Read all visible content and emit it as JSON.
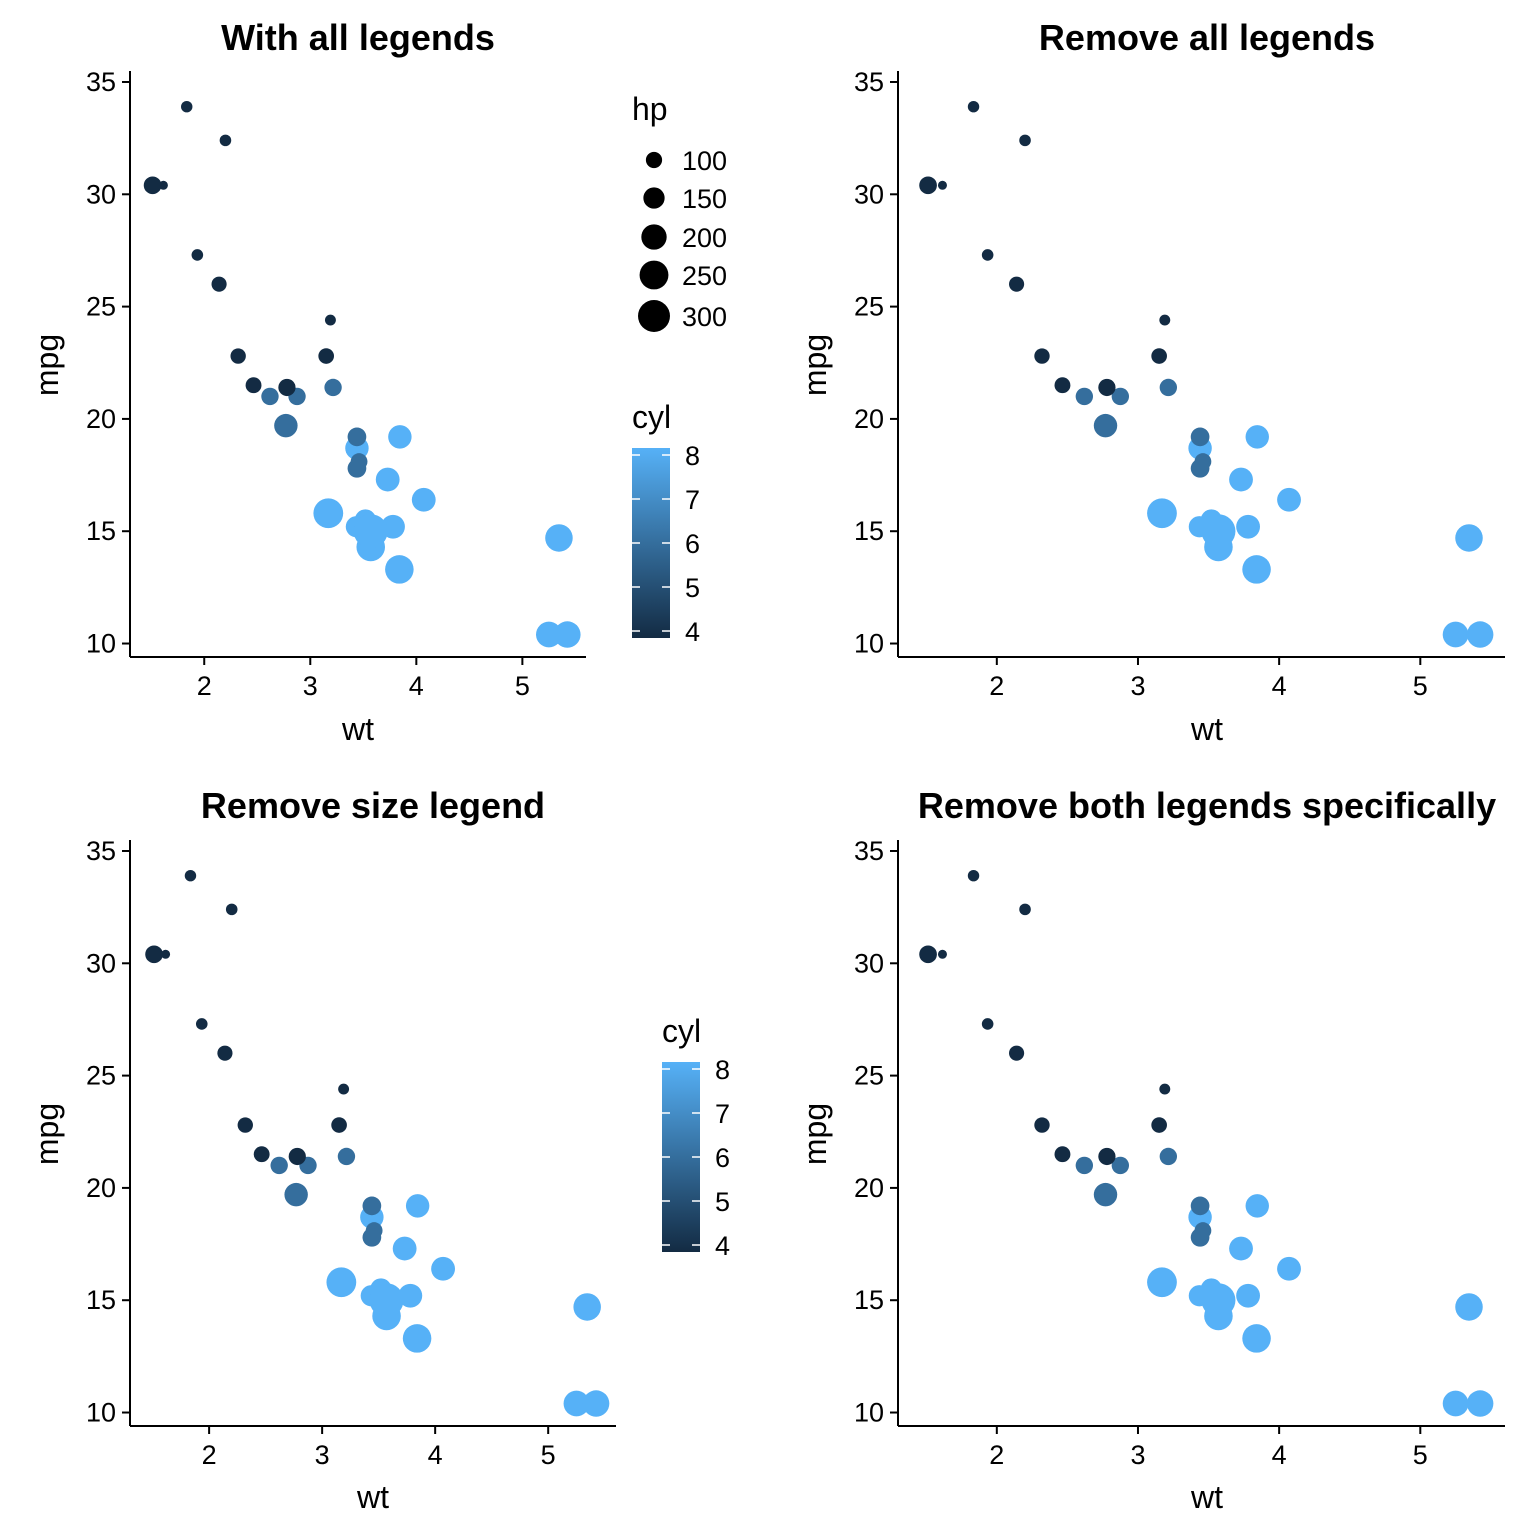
{
  "chart_data": [
    {
      "type": "scatter",
      "title": "With all legends",
      "xlabel": "wt",
      "ylabel": "mpg",
      "xlim": [
        1.3,
        5.6
      ],
      "ylim": [
        9.4,
        35.4
      ],
      "xticks": [
        2,
        3,
        4,
        5
      ],
      "yticks": [
        10,
        15,
        20,
        25,
        30,
        35
      ],
      "grid": false,
      "size_legend": {
        "title": "hp",
        "values": [
          100,
          150,
          200,
          250,
          300
        ]
      },
      "color_legend": {
        "title": "cyl",
        "values": [
          4,
          5,
          6,
          7,
          8
        ],
        "low": "#132B43",
        "high": "#56B1F7"
      }
    },
    {
      "type": "scatter",
      "title": "Remove all legends",
      "xlabel": "wt",
      "ylabel": "mpg",
      "xlim": [
        1.3,
        5.6
      ],
      "ylim": [
        9.4,
        35.4
      ],
      "xticks": [
        2,
        3,
        4,
        5
      ],
      "yticks": [
        10,
        15,
        20,
        25,
        30,
        35
      ],
      "grid": false
    },
    {
      "type": "scatter",
      "title": "Remove size legend",
      "xlabel": "wt",
      "ylabel": "mpg",
      "xlim": [
        1.3,
        5.6
      ],
      "ylim": [
        9.4,
        35.4
      ],
      "xticks": [
        2,
        3,
        4,
        5
      ],
      "yticks": [
        10,
        15,
        20,
        25,
        30,
        35
      ],
      "grid": false,
      "color_legend": {
        "title": "cyl",
        "values": [
          4,
          5,
          6,
          7,
          8
        ],
        "low": "#132B43",
        "high": "#56B1F7"
      }
    },
    {
      "type": "scatter",
      "title": "Remove both legends specifically",
      "xlabel": "wt",
      "ylabel": "mpg",
      "xlim": [
        1.3,
        5.6
      ],
      "ylim": [
        9.4,
        35.4
      ],
      "xticks": [
        2,
        3,
        4,
        5
      ],
      "yticks": [
        10,
        15,
        20,
        25,
        30,
        35
      ],
      "grid": false
    }
  ],
  "points": [
    {
      "wt": 2.62,
      "mpg": 21.0,
      "cyl": 6,
      "hp": 110
    },
    {
      "wt": 2.875,
      "mpg": 21.0,
      "cyl": 6,
      "hp": 110
    },
    {
      "wt": 2.32,
      "mpg": 22.8,
      "cyl": 4,
      "hp": 93
    },
    {
      "wt": 3.215,
      "mpg": 21.4,
      "cyl": 6,
      "hp": 110
    },
    {
      "wt": 3.44,
      "mpg": 18.7,
      "cyl": 8,
      "hp": 175
    },
    {
      "wt": 3.46,
      "mpg": 18.1,
      "cyl": 6,
      "hp": 105
    },
    {
      "wt": 3.57,
      "mpg": 14.3,
      "cyl": 8,
      "hp": 245
    },
    {
      "wt": 3.19,
      "mpg": 24.4,
      "cyl": 4,
      "hp": 62
    },
    {
      "wt": 3.15,
      "mpg": 22.8,
      "cyl": 4,
      "hp": 95
    },
    {
      "wt": 3.44,
      "mpg": 19.2,
      "cyl": 6,
      "hp": 123
    },
    {
      "wt": 3.44,
      "mpg": 17.8,
      "cyl": 6,
      "hp": 123
    },
    {
      "wt": 4.07,
      "mpg": 16.4,
      "cyl": 8,
      "hp": 180
    },
    {
      "wt": 3.73,
      "mpg": 17.3,
      "cyl": 8,
      "hp": 180
    },
    {
      "wt": 3.78,
      "mpg": 15.2,
      "cyl": 8,
      "hp": 180
    },
    {
      "wt": 5.25,
      "mpg": 10.4,
      "cyl": 8,
      "hp": 205
    },
    {
      "wt": 5.424,
      "mpg": 10.4,
      "cyl": 8,
      "hp": 215
    },
    {
      "wt": 5.345,
      "mpg": 14.7,
      "cyl": 8,
      "hp": 230
    },
    {
      "wt": 2.2,
      "mpg": 32.4,
      "cyl": 4,
      "hp": 66
    },
    {
      "wt": 1.615,
      "mpg": 30.4,
      "cyl": 4,
      "hp": 52
    },
    {
      "wt": 1.835,
      "mpg": 33.9,
      "cyl": 4,
      "hp": 65
    },
    {
      "wt": 2.465,
      "mpg": 21.5,
      "cyl": 4,
      "hp": 97
    },
    {
      "wt": 3.52,
      "mpg": 15.5,
      "cyl": 8,
      "hp": 150
    },
    {
      "wt": 3.435,
      "mpg": 15.2,
      "cyl": 8,
      "hp": 150
    },
    {
      "wt": 3.84,
      "mpg": 13.3,
      "cyl": 8,
      "hp": 245
    },
    {
      "wt": 3.845,
      "mpg": 19.2,
      "cyl": 8,
      "hp": 175
    },
    {
      "wt": 1.935,
      "mpg": 27.3,
      "cyl": 4,
      "hp": 66
    },
    {
      "wt": 2.14,
      "mpg": 26.0,
      "cyl": 4,
      "hp": 91
    },
    {
      "wt": 1.513,
      "mpg": 30.4,
      "cyl": 4,
      "hp": 113
    },
    {
      "wt": 3.17,
      "mpg": 15.8,
      "cyl": 8,
      "hp": 264
    },
    {
      "wt": 2.77,
      "mpg": 19.7,
      "cyl": 6,
      "hp": 175
    },
    {
      "wt": 3.57,
      "mpg": 15.0,
      "cyl": 8,
      "hp": 335
    },
    {
      "wt": 2.78,
      "mpg": 21.4,
      "cyl": 4,
      "hp": 109
    }
  ]
}
